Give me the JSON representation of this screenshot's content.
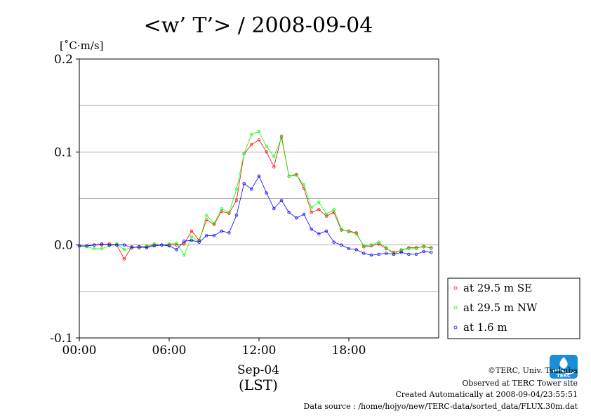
{
  "chart_data": {
    "type": "line",
    "title": "<w’ T’> / 2008-09-04",
    "ylabel": "[˚C·m/s]",
    "xlabel": "Sep-04",
    "xlabel2": "(LST)",
    "xlim": [
      0,
      24
    ],
    "ylim": [
      -0.1,
      0.2
    ],
    "x_ticks": [
      {
        "value": 0,
        "label": "00:00"
      },
      {
        "value": 6,
        "label": "06:00"
      },
      {
        "value": 12,
        "label": "12:00"
      },
      {
        "value": 18,
        "label": "18:00"
      }
    ],
    "y_ticks": [
      {
        "value": 0.2,
        "label": "0.2"
      },
      {
        "value": 0.1,
        "label": "0.1"
      },
      {
        "value": 0.0,
        "label": "0.0"
      },
      {
        "value": -0.1,
        "label": "-0.1"
      }
    ],
    "grid": true,
    "legend_position": "right",
    "x": [
      0,
      0.5,
      1,
      1.5,
      2,
      2.5,
      3,
      3.5,
      4,
      4.5,
      5,
      5.5,
      6,
      6.5,
      7,
      7.5,
      8,
      8.5,
      9,
      9.5,
      10,
      10.5,
      11,
      11.5,
      12,
      12.5,
      13,
      13.5,
      14,
      14.5,
      15,
      15.5,
      16,
      16.5,
      17,
      17.5,
      18,
      18.5,
      19,
      19.5,
      20,
      20.5,
      21,
      21.5,
      22,
      22.5,
      23,
      23.5
    ],
    "series": [
      {
        "name": "at 29.5 m SE",
        "color": "#ff0000",
        "values": [
          -0.001,
          -0.001,
          0.0,
          0.0,
          0.001,
          0.0,
          -0.015,
          -0.002,
          -0.003,
          -0.002,
          0.0,
          0.0,
          0.0,
          0.0,
          0.001,
          0.015,
          0.005,
          0.027,
          0.022,
          0.036,
          0.034,
          0.048,
          0.098,
          0.108,
          0.113,
          0.1,
          0.084,
          0.117,
          0.074,
          0.076,
          0.061,
          0.035,
          0.038,
          0.031,
          0.035,
          0.016,
          0.015,
          0.013,
          -0.002,
          -0.001,
          0.001,
          -0.004,
          -0.008,
          -0.006,
          -0.003,
          -0.003,
          -0.002,
          -0.003
        ]
      },
      {
        "name": "at 29.5 m NW",
        "color": "#00ff00",
        "values": [
          -0.001,
          -0.002,
          -0.004,
          -0.004,
          -0.001,
          0.001,
          -0.005,
          -0.003,
          -0.002,
          -0.001,
          0.001,
          0.0,
          0.001,
          0.002,
          -0.011,
          0.009,
          0.003,
          0.032,
          0.023,
          0.039,
          0.035,
          0.06,
          0.098,
          0.119,
          0.122,
          0.106,
          0.095,
          0.115,
          0.074,
          0.075,
          0.065,
          0.04,
          0.046,
          0.033,
          0.038,
          0.017,
          0.014,
          0.012,
          -0.001,
          0.0,
          0.003,
          -0.003,
          -0.01,
          -0.005,
          -0.004,
          -0.004,
          -0.001,
          -0.004
        ]
      },
      {
        "name": "at 1.6 m",
        "color": "#0000ff",
        "values": [
          -0.001,
          -0.001,
          0.0,
          0.001,
          0.0,
          0.0,
          0.0,
          -0.003,
          -0.002,
          -0.003,
          -0.001,
          0.0,
          -0.001,
          -0.005,
          0.004,
          0.005,
          0.003,
          0.01,
          0.01,
          0.015,
          0.013,
          0.032,
          0.066,
          0.06,
          0.074,
          0.056,
          0.039,
          0.048,
          0.035,
          0.029,
          0.033,
          0.017,
          0.012,
          0.015,
          0.003,
          0.0,
          -0.004,
          -0.005,
          -0.009,
          -0.011,
          -0.01,
          -0.009,
          -0.01,
          -0.008,
          -0.01,
          -0.01,
          -0.007,
          -0.008
        ]
      }
    ]
  },
  "credits": {
    "copyright": "©TERC, Univ. Tsukuba",
    "observed": "Observed at TERC Tower site",
    "created": "Created Automatically at 2008-09-04/23:55:51",
    "source": "Data source : /home/hojyo/new/TERC-data/sorted_data/FLUX.30m.dat"
  },
  "logo": {
    "text": "TERC",
    "color": "#1a8fd8"
  }
}
